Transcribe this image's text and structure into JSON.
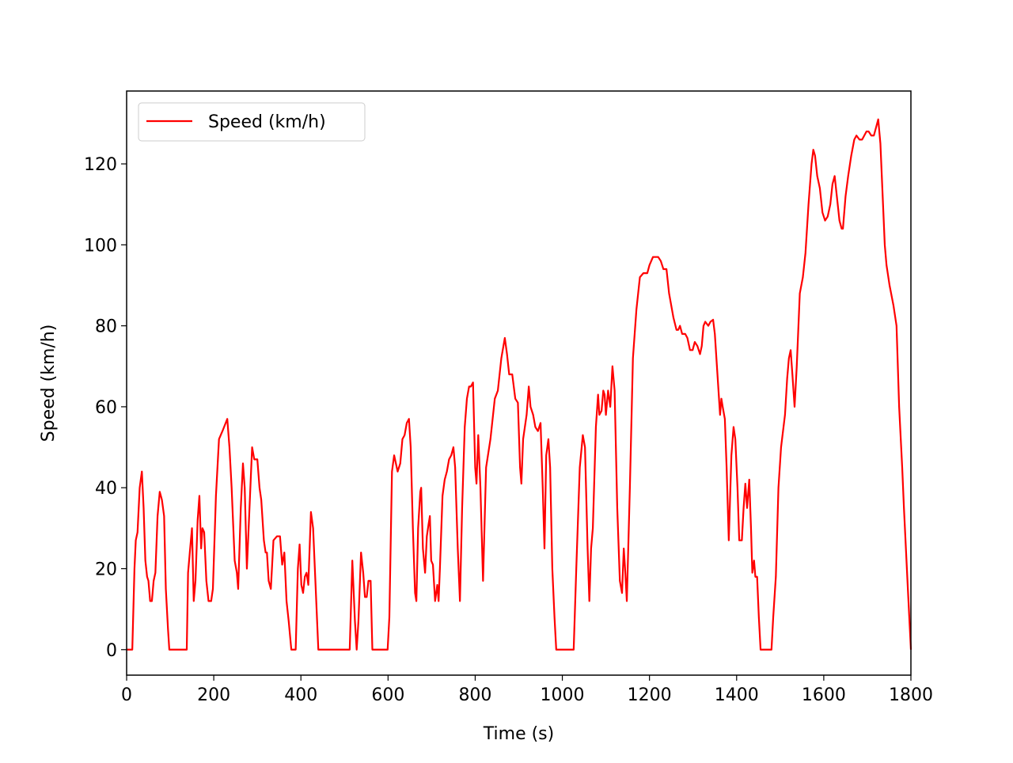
{
  "chart_data": {
    "type": "line",
    "xlabel": "Time (s)",
    "ylabel": "Speed (km/h)",
    "xlim": [
      0,
      1800
    ],
    "ylim": [
      -6.3,
      138
    ],
    "xticks": [
      0,
      200,
      400,
      600,
      800,
      1000,
      1200,
      1400,
      1600,
      1800
    ],
    "yticks": [
      0,
      20,
      40,
      60,
      80,
      100,
      120
    ],
    "grid": false,
    "legend": "upper left",
    "x": [
      0,
      10,
      13,
      18,
      21,
      25,
      30,
      35,
      39,
      43,
      47,
      50,
      54,
      58,
      62,
      66,
      71,
      76,
      81,
      86,
      90,
      95,
      98,
      138,
      141,
      145,
      150,
      154,
      158,
      163,
      167,
      171,
      174,
      178,
      183,
      188,
      194,
      198,
      205,
      212,
      220,
      231,
      236,
      241,
      248,
      253,
      256,
      262,
      267,
      271,
      276,
      282,
      288,
      293,
      300,
      305,
      309,
      315,
      319,
      322,
      326,
      331,
      337,
      345,
      352,
      357,
      362,
      367,
      372,
      378,
      388,
      393,
      397,
      401,
      405,
      409,
      413,
      417,
      423,
      428,
      434,
      440,
      512,
      518,
      524,
      528,
      532,
      538,
      543,
      547,
      551,
      555,
      560,
      564,
      599,
      603,
      609,
      614,
      618,
      622,
      628,
      633,
      638,
      643,
      648,
      652,
      657,
      662,
      665,
      669,
      674,
      676,
      680,
      685,
      689,
      693,
      696,
      699,
      703,
      708,
      713,
      716,
      719,
      725,
      730,
      735,
      740,
      745,
      750,
      754,
      760,
      765,
      770,
      776,
      781,
      786,
      790,
      795,
      800,
      803,
      807,
      812,
      818,
      825,
      835,
      845,
      852,
      860,
      868,
      873,
      878,
      885,
      892,
      898,
      903,
      906,
      910,
      918,
      923,
      927,
      933,
      938,
      944,
      950,
      955,
      959,
      963,
      968,
      972,
      977,
      982,
      986,
      1026,
      1032,
      1040,
      1047,
      1052,
      1058,
      1062,
      1066,
      1070,
      1077,
      1082,
      1085,
      1090,
      1094,
      1097,
      1100,
      1105,
      1110,
      1115,
      1120,
      1126,
      1132,
      1137,
      1141,
      1144,
      1148,
      1155,
      1162,
      1170,
      1178,
      1186,
      1195,
      1200,
      1208,
      1220,
      1226,
      1232,
      1239,
      1245,
      1255,
      1262,
      1266,
      1270,
      1275,
      1282,
      1287,
      1293,
      1299,
      1304,
      1310,
      1316,
      1320,
      1324,
      1328,
      1335,
      1340,
      1346,
      1350,
      1356,
      1362,
      1365,
      1368,
      1373,
      1377,
      1382,
      1388,
      1393,
      1397,
      1402,
      1406,
      1412,
      1416,
      1420,
      1424,
      1429,
      1433,
      1436,
      1440,
      1443,
      1447,
      1451,
      1455,
      1480,
      1484,
      1490,
      1496,
      1502,
      1511,
      1516,
      1520,
      1524,
      1528,
      1533,
      1538,
      1545,
      1552,
      1558,
      1565,
      1572,
      1576,
      1580,
      1585,
      1591,
      1597,
      1603,
      1609,
      1615,
      1620,
      1625,
      1630,
      1636,
      1641,
      1644,
      1650,
      1656,
      1663,
      1670,
      1675,
      1682,
      1688,
      1693,
      1698,
      1703,
      1709,
      1715,
      1720,
      1725,
      1730,
      1736,
      1740,
      1744,
      1751,
      1760,
      1767,
      1773,
      1780,
      1784,
      1793,
      1800
    ],
    "series": [
      {
        "name": "Speed (km/h)",
        "color": "#ff0000",
        "values": [
          0,
          0,
          0,
          20,
          27,
          29,
          40,
          44,
          35,
          22,
          18,
          17,
          12,
          12,
          17,
          19,
          33,
          39,
          37,
          33,
          15,
          5,
          0,
          0,
          19,
          24,
          30,
          12,
          17,
          32,
          38,
          25,
          30,
          29,
          17,
          12,
          12,
          15,
          38,
          52,
          54,
          57,
          50,
          40,
          22,
          19,
          15,
          35,
          46,
          40,
          20,
          35,
          50,
          47,
          47,
          40,
          37,
          27,
          24,
          24,
          17,
          15,
          27,
          28,
          28,
          21,
          24,
          12,
          7,
          0,
          0,
          20,
          26,
          16,
          14,
          18,
          19,
          16,
          34,
          30,
          15,
          0,
          0,
          22,
          7,
          0,
          7,
          24,
          19,
          13,
          13,
          17,
          17,
          0,
          0,
          8,
          44,
          48,
          46,
          44,
          46,
          52,
          53,
          56,
          57,
          50,
          30,
          14,
          12,
          30,
          39,
          40,
          25,
          19,
          28,
          31,
          33,
          22,
          21,
          12,
          16,
          12,
          20,
          38,
          42,
          44,
          47,
          48,
          50,
          45,
          25,
          12,
          35,
          55,
          62,
          65,
          65,
          66,
          45,
          41,
          53,
          40,
          17,
          45,
          52,
          62,
          64,
          72,
          77,
          73,
          68,
          68,
          62,
          61,
          45,
          41,
          52,
          58,
          65,
          60,
          58,
          55,
          54,
          56,
          40,
          25,
          48,
          52,
          45,
          20,
          8,
          0,
          0,
          20,
          45,
          53,
          50,
          25,
          12,
          25,
          30,
          55,
          63,
          58,
          59,
          64,
          63,
          58,
          64,
          60,
          70,
          64,
          35,
          17,
          14,
          25,
          20,
          12,
          40,
          72,
          84,
          92,
          93,
          93,
          95,
          97,
          97,
          96,
          94,
          94,
          88,
          82,
          79,
          79,
          80,
          78,
          78,
          77,
          74,
          74,
          76,
          75,
          73,
          75,
          80,
          81,
          80,
          81,
          81.5,
          78,
          68,
          58,
          62,
          60,
          57,
          45,
          27,
          48,
          55,
          52,
          40,
          27,
          27,
          35,
          41,
          35,
          42,
          30,
          19,
          22,
          18,
          18,
          8,
          0,
          0,
          8,
          18,
          40,
          50,
          58,
          67,
          72,
          74,
          68,
          60,
          70,
          88,
          92,
          98,
          110,
          120,
          123.5,
          122,
          117,
          114,
          108,
          106,
          107,
          110,
          115,
          117,
          112,
          106,
          104,
          104,
          112,
          117,
          122,
          126,
          127,
          126,
          126,
          127,
          128,
          128,
          127,
          127,
          129,
          131,
          125,
          110,
          100,
          95,
          90,
          85,
          80,
          60,
          45,
          35,
          15,
          0
        ]
      }
    ]
  }
}
